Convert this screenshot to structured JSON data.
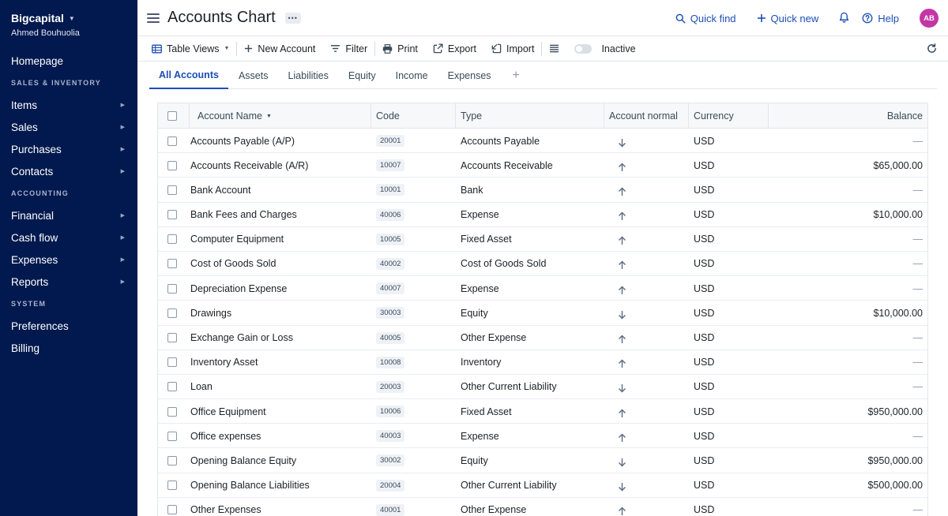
{
  "sidebar": {
    "brand": "Bigcapital",
    "user": "Ahmed Bouhuolia",
    "homepage": "Homepage",
    "section_sales": "SALES & INVENTORY",
    "items": "Items",
    "sales": "Sales",
    "purchases": "Purchases",
    "contacts": "Contacts",
    "section_accounting": "ACCOUNTING",
    "financial": "Financial",
    "cashflow": "Cash flow",
    "expenses": "Expenses",
    "reports": "Reports",
    "section_system": "SYSTEM",
    "preferences": "Preferences",
    "billing": "Billing"
  },
  "header": {
    "title": "Accounts Chart",
    "quick_find": "Quick find",
    "quick_new": "Quick new",
    "help": "Help",
    "avatar": "AB"
  },
  "toolbar": {
    "table_views": "Table Views",
    "new_account": "New Account",
    "filter": "Filter",
    "print": "Print",
    "export": "Export",
    "import": "Import",
    "inactive": "Inactive"
  },
  "tabs": [
    "All Accounts",
    "Assets",
    "Liabilities",
    "Equity",
    "Income",
    "Expenses"
  ],
  "table": {
    "columns": [
      "Account Name",
      "Code",
      "Type",
      "Account normal",
      "Currency",
      "Balance"
    ],
    "rows": [
      {
        "name": "Accounts Payable (A/P)",
        "code": "20001",
        "type": "Accounts Payable",
        "normal": "credit",
        "currency": "USD",
        "balance": "—"
      },
      {
        "name": "Accounts Receivable (A/R)",
        "code": "10007",
        "type": "Accounts Receivable",
        "normal": "debit",
        "currency": "USD",
        "balance": "$65,000.00"
      },
      {
        "name": "Bank Account",
        "code": "10001",
        "type": "Bank",
        "normal": "debit",
        "currency": "USD",
        "balance": "—"
      },
      {
        "name": "Bank Fees and Charges",
        "code": "40006",
        "type": "Expense",
        "normal": "debit",
        "currency": "USD",
        "balance": "$10,000.00"
      },
      {
        "name": "Computer Equipment",
        "code": "10005",
        "type": "Fixed Asset",
        "normal": "debit",
        "currency": "USD",
        "balance": "—"
      },
      {
        "name": "Cost of Goods Sold",
        "code": "40002",
        "type": "Cost of Goods Sold",
        "normal": "debit",
        "currency": "USD",
        "balance": "—"
      },
      {
        "name": "Depreciation Expense",
        "code": "40007",
        "type": "Expense",
        "normal": "debit",
        "currency": "USD",
        "balance": "—"
      },
      {
        "name": "Drawings",
        "code": "30003",
        "type": "Equity",
        "normal": "credit",
        "currency": "USD",
        "balance": "$10,000.00"
      },
      {
        "name": "Exchange Gain or Loss",
        "code": "40005",
        "type": "Other Expense",
        "normal": "debit",
        "currency": "USD",
        "balance": "—"
      },
      {
        "name": "Inventory Asset",
        "code": "10008",
        "type": "Inventory",
        "normal": "debit",
        "currency": "USD",
        "balance": "—"
      },
      {
        "name": "Loan",
        "code": "20003",
        "type": "Other Current Liability",
        "normal": "credit",
        "currency": "USD",
        "balance": "—"
      },
      {
        "name": "Office Equipment",
        "code": "10006",
        "type": "Fixed Asset",
        "normal": "debit",
        "currency": "USD",
        "balance": "$950,000.00"
      },
      {
        "name": "Office expenses",
        "code": "40003",
        "type": "Expense",
        "normal": "debit",
        "currency": "USD",
        "balance": "—"
      },
      {
        "name": "Opening Balance Equity",
        "code": "30002",
        "type": "Equity",
        "normal": "credit",
        "currency": "USD",
        "balance": "$950,000.00"
      },
      {
        "name": "Opening Balance Liabilities",
        "code": "20004",
        "type": "Other Current Liability",
        "normal": "credit",
        "currency": "USD",
        "balance": "$500,000.00"
      },
      {
        "name": "Other Expenses",
        "code": "40001",
        "type": "Other Expense",
        "normal": "debit",
        "currency": "USD",
        "balance": "—"
      }
    ]
  },
  "colors": {
    "sidebar_bg": "#01194e",
    "accent": "#1d4eb3",
    "avatar_bg": "#c436a5"
  }
}
